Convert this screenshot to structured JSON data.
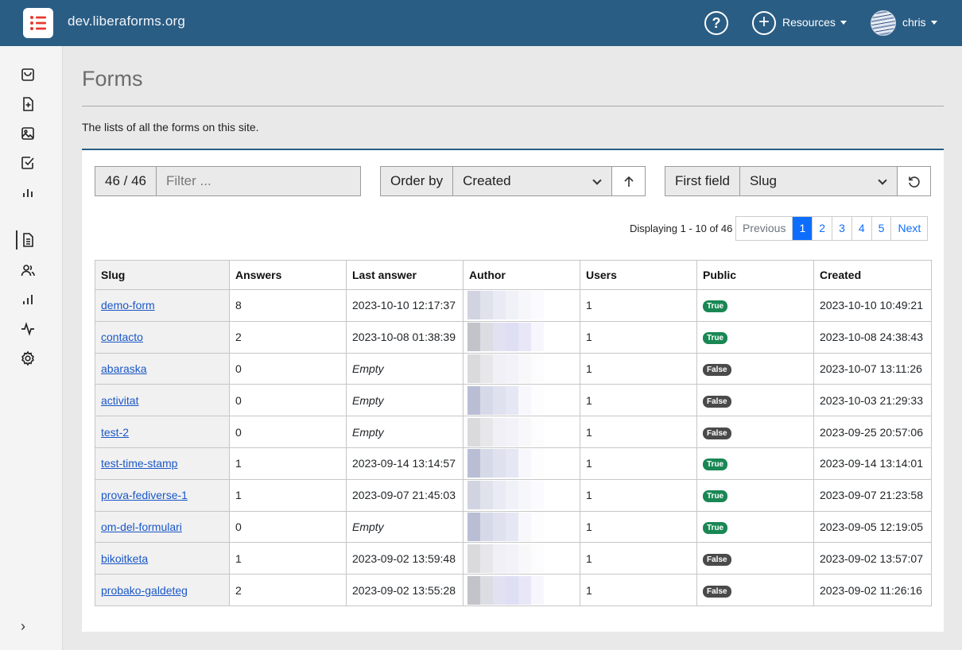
{
  "header": {
    "site_name": "dev.liberaforms.org",
    "help_symbol": "?",
    "resources_label": "Resources",
    "user_label": "chris"
  },
  "sidebar": {
    "top_icons": [
      "shopping-bag-icon",
      "file-plus-icon",
      "image-icon",
      "check-square-icon",
      "bar-chart-icon"
    ],
    "admin_icons": [
      "file-text-icon",
      "users-icon",
      "bar-chart-icon",
      "activity-icon",
      "gear-icon"
    ],
    "toggle_symbol": "›"
  },
  "page": {
    "title": "Forms",
    "description": "The lists of all the forms on this site."
  },
  "controls": {
    "count": "46 / 46",
    "filter_placeholder": "Filter ...",
    "order_by_label": "Order by",
    "order_by_value": "Created",
    "first_field_label": "First field",
    "first_field_value": "Slug"
  },
  "pagination": {
    "info": "Displaying 1 - 10 of 46",
    "previous": "Previous",
    "pages": [
      "1",
      "2",
      "3",
      "4",
      "5"
    ],
    "active_page": "1",
    "next": "Next"
  },
  "table": {
    "headers": {
      "slug": "Slug",
      "answers": "Answers",
      "last_answer": "Last answer",
      "author": "Author",
      "users": "Users",
      "public": "Public",
      "created": "Created"
    },
    "rows": [
      {
        "slug": "demo-form",
        "answers": "8",
        "last_answer": "2023-10-10 12:17:37",
        "users": "1",
        "public": "True",
        "created": "2023-10-10 10:49:21"
      },
      {
        "slug": "contacto",
        "answers": "2",
        "last_answer": "2023-10-08 01:38:39",
        "users": "1",
        "public": "True",
        "created": "2023-10-08 24:38:43"
      },
      {
        "slug": "abaraska",
        "answers": "0",
        "last_answer": "Empty",
        "users": "1",
        "public": "False",
        "created": "2023-10-07 13:11:26"
      },
      {
        "slug": "activitat",
        "answers": "0",
        "last_answer": "Empty",
        "users": "1",
        "public": "False",
        "created": "2023-10-03 21:29:33"
      },
      {
        "slug": "test-2",
        "answers": "0",
        "last_answer": "Empty",
        "users": "1",
        "public": "False",
        "created": "2023-09-25 20:57:06"
      },
      {
        "slug": "test-time-stamp",
        "answers": "1",
        "last_answer": "2023-09-14 13:14:57",
        "users": "1",
        "public": "True",
        "created": "2023-09-14 13:14:01"
      },
      {
        "slug": "prova-fediverse-1",
        "answers": "1",
        "last_answer": "2023-09-07 21:45:03",
        "users": "1",
        "public": "True",
        "created": "2023-09-07 21:23:58"
      },
      {
        "slug": "om-del-formulari",
        "answers": "0",
        "last_answer": "Empty",
        "users": "1",
        "public": "True",
        "created": "2023-09-05 12:19:05"
      },
      {
        "slug": "bikoitketa",
        "answers": "1",
        "last_answer": "2023-09-02 13:59:48",
        "users": "1",
        "public": "False",
        "created": "2023-09-02 13:57:07"
      },
      {
        "slug": "probako-galdeteg",
        "answers": "2",
        "last_answer": "2023-09-02 13:55:28",
        "users": "1",
        "public": "False",
        "created": "2023-09-02 11:26:16"
      }
    ]
  },
  "colors": {
    "header_bg": "#2a5d84",
    "link": "#1a57c8",
    "badge_true": "#198754",
    "badge_false": "#4a4a4a",
    "page_active": "#0d6efd"
  }
}
